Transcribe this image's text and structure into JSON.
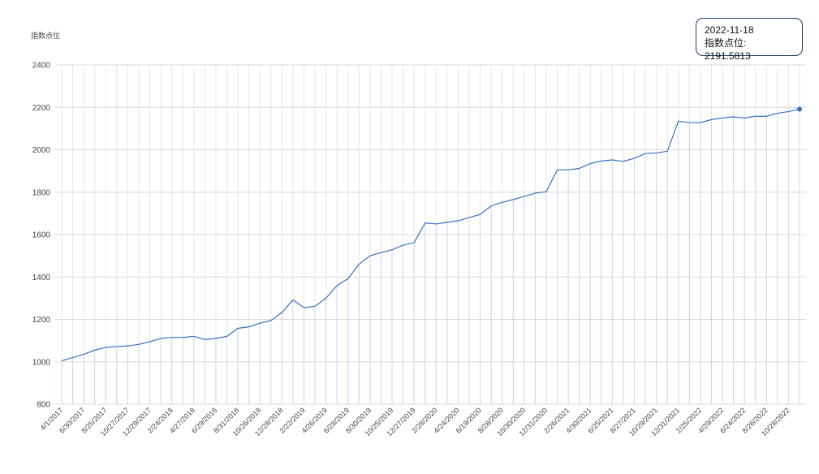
{
  "chart_data": {
    "type": "line",
    "y_axis_label": "指数点位",
    "categories": [
      "4/1/2017",
      null,
      "6/30/2017",
      null,
      "8/25/2017",
      null,
      "10/27/2017",
      null,
      "12/29/2017",
      null,
      "2/24/2018",
      null,
      "4/27/2018",
      null,
      "6/29/2018",
      null,
      "8/31/2018",
      null,
      "10/26/2018",
      null,
      "12/28/2018",
      null,
      "2/22/2019",
      null,
      "4/26/2019",
      null,
      "6/28/2019",
      null,
      "8/30/2019",
      null,
      "10/25/2019",
      null,
      "12/27/2019",
      null,
      "2/28/2020",
      null,
      "4/24/2020",
      null,
      "6/19/2020",
      null,
      "8/28/2020",
      null,
      "10/30/2020",
      null,
      "12/31/2020",
      null,
      "2/26/2021",
      null,
      "4/30/2021",
      null,
      "6/25/2021",
      null,
      "8/27/2021",
      null,
      "10/29/2021",
      null,
      "12/31/2021",
      null,
      "2/25/2022",
      null,
      "4/29/2022",
      null,
      "6/24/2022",
      null,
      "8/26/2022",
      null,
      "10/28/2022",
      null
    ],
    "series": [
      {
        "name": "指数点位",
        "color": "#3a6fc4",
        "values": [
          1005,
          1020,
          1035,
          1055,
          1068,
          1072,
          1075,
          1082,
          1095,
          1110,
          1115,
          1115,
          1120,
          1105,
          1110,
          1120,
          1158,
          1165,
          1182,
          1195,
          1232,
          1292,
          1255,
          1262,
          1300,
          1360,
          1392,
          1460,
          1500,
          1515,
          1528,
          1550,
          1562,
          1655,
          1650,
          1658,
          1665,
          1680,
          1695,
          1735,
          1752,
          1765,
          1780,
          1795,
          1802,
          1905,
          1905,
          1912,
          1935,
          1947,
          1952,
          1945,
          1960,
          1982,
          1985,
          1993,
          2135,
          2128,
          2128,
          2142,
          2150,
          2155,
          2150,
          2158,
          2158,
          2172,
          2180,
          2191.5813
        ]
      }
    ],
    "ylim": [
      800,
      2400
    ],
    "yticks": [
      800,
      1000,
      1200,
      1400,
      1600,
      1800,
      2000,
      2200,
      2400
    ],
    "grid": true,
    "tooltip": {
      "date": "2022-11-18",
      "text": "指数点位: 2191.5813"
    }
  }
}
